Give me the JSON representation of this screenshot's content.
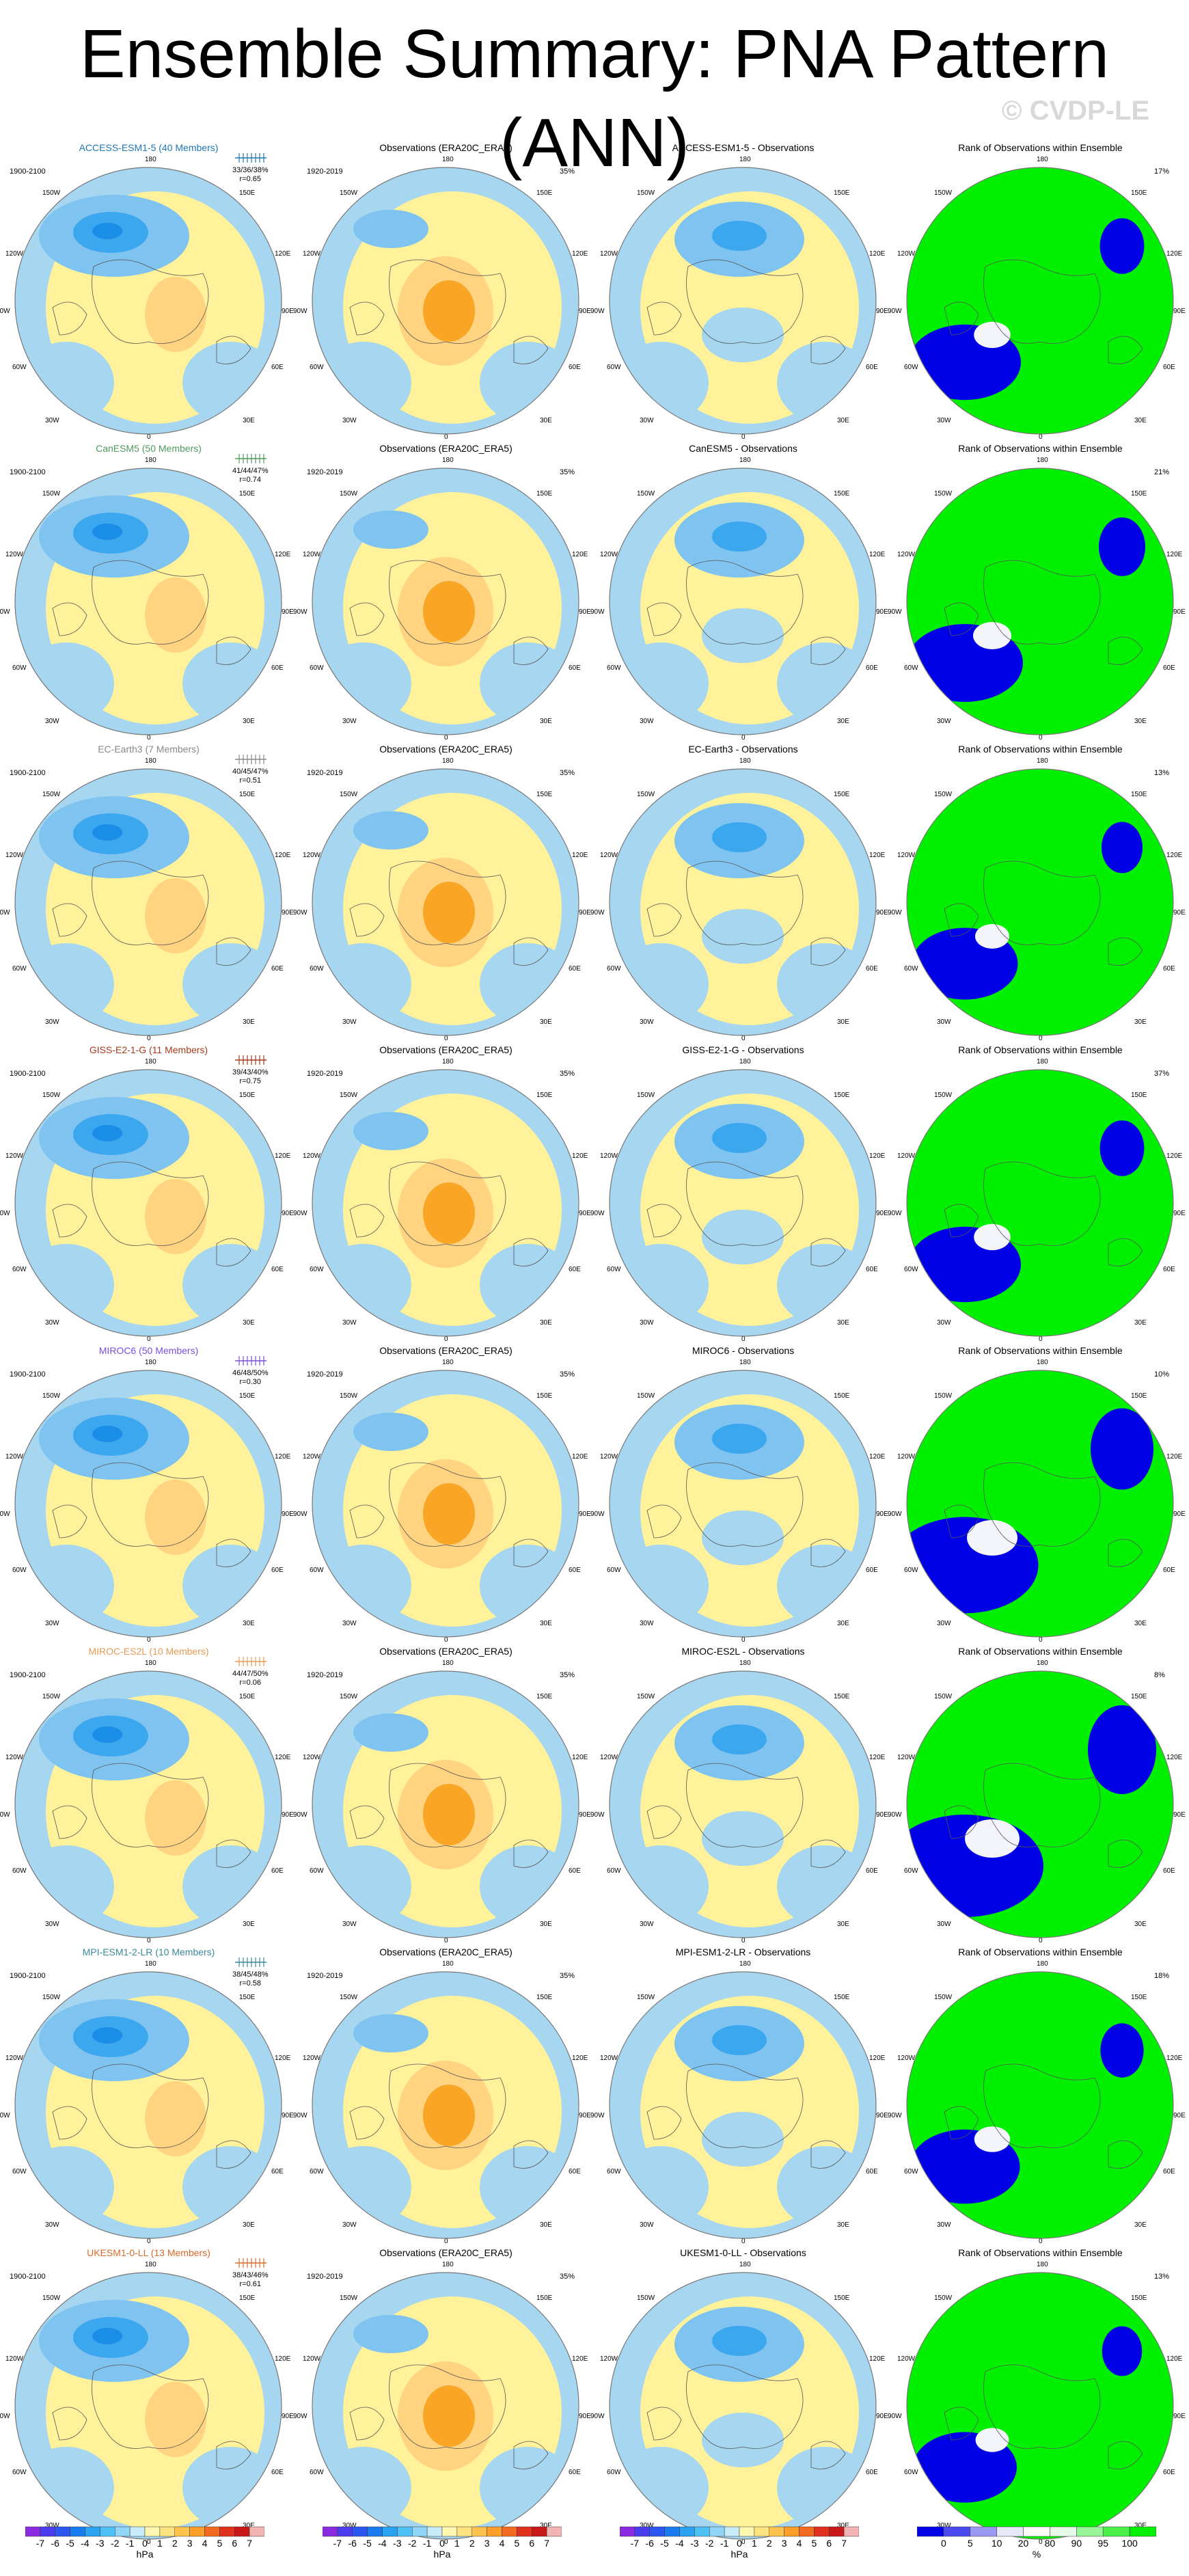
{
  "title": "Ensemble Summary: PNA Pattern (ANN)",
  "watermark": "© CVDP-LE",
  "map_labels": {
    "lon180": "180",
    "lon0": "0",
    "lon150w": "150W",
    "lon120w": "120W",
    "lon90w": "90W",
    "lon60w": "60W",
    "lon30w": "30W",
    "lon150e": "150E",
    "lon120e": "120E",
    "lon90e": "90E",
    "lon60e": "60E",
    "lon30e": "30E"
  },
  "colors": {
    "ocean": "#a6d6f0",
    "land_anom": "#fff29a",
    "pos1": "#ffd37f",
    "pos2": "#f9a627",
    "neg1": "#7fc3f0",
    "neg2": "#3aa7ef",
    "neg3": "#1a8ee6",
    "rank_high": "#00f000",
    "rank_low": "#0000e6",
    "rank_mid": "#f4f4fb"
  },
  "rows": [
    {
      "model": "ACCESS-ESM1-5 (40 Members)",
      "model_color": "#1f77b4",
      "years": "1900-2100",
      "stats": "33/36/38%",
      "r": "r=0.65",
      "obs_title": "Observations (ERA20C_ERA5)",
      "obs_years": "1920-2019",
      "obs_pct": "35%",
      "diff_title": "ACCESS-ESM1-5 - Observations",
      "rank_title": "Rank of Observations within Ensemble",
      "rank_pct": "17%",
      "rank_fraction": 0.72
    },
    {
      "model": "CanESM5 (50 Members)",
      "model_color": "#4f9a5c",
      "years": "1900-2100",
      "stats": "41/44/47%",
      "r": "r=0.74",
      "obs_title": "Observations (ERA20C_ERA5)",
      "obs_years": "1920-2019",
      "obs_pct": "35%",
      "diff_title": "CanESM5 - Observations",
      "rank_title": "Rank of Observations within Ensemble",
      "rank_pct": "21%",
      "rank_fraction": 0.7
    },
    {
      "model": "EC-Earth3 (7 Members)",
      "model_color": "#888888",
      "years": "1900-2100",
      "stats": "40/45/47%",
      "r": "r=0.51",
      "obs_title": "Observations (ERA20C_ERA5)",
      "obs_years": "1920-2019",
      "obs_pct": "35%",
      "diff_title": "EC-Earth3 - Observations",
      "rank_title": "Rank of Observations within Ensemble",
      "rank_pct": "13%",
      "rank_fraction": 0.75
    },
    {
      "model": "GISS-E2-1-G (11 Members)",
      "model_color": "#a83a1b",
      "years": "1900-2100",
      "stats": "39/43/40%",
      "r": "r=0.75",
      "obs_title": "Observations (ERA20C_ERA5)",
      "obs_years": "1920-2019",
      "obs_pct": "35%",
      "diff_title": "GISS-E2-1-G - Observations",
      "rank_title": "Rank of Observations within Ensemble",
      "rank_pct": "37%",
      "rank_fraction": 0.72
    },
    {
      "model": "MIROC6 (50 Members)",
      "model_color": "#7a4fe0",
      "years": "1900-2100",
      "stats": "46/48/50%",
      "r": "r=0.30",
      "obs_title": "Observations (ERA20C_ERA5)",
      "obs_years": "1920-2019",
      "obs_pct": "35%",
      "diff_title": "MIROC6 - Observations",
      "rank_title": "Rank of Observations within Ensemble",
      "rank_pct": "10%",
      "rank_fraction": 0.55
    },
    {
      "model": "MIROC-ES2L (10 Members)",
      "model_color": "#e89a55",
      "years": "1900-2100",
      "stats": "44/47/50%",
      "r": "r=0.06",
      "obs_title": "Observations (ERA20C_ERA5)",
      "obs_years": "1920-2019",
      "obs_pct": "35%",
      "diff_title": "MIROC-ES2L - Observations",
      "rank_title": "Rank of Observations within Ensemble",
      "rank_pct": "8%",
      "rank_fraction": 0.5
    },
    {
      "model": "MPI-ESM1-2-LR (10 Members)",
      "model_color": "#3a8a9a",
      "years": "1900-2100",
      "stats": "38/45/48%",
      "r": "r=0.58",
      "obs_title": "Observations (ERA20C_ERA5)",
      "obs_years": "1920-2019",
      "obs_pct": "35%",
      "diff_title": "MPI-ESM1-2-LR - Observations",
      "rank_title": "Rank of Observations within Ensemble",
      "rank_pct": "18%",
      "rank_fraction": 0.73
    },
    {
      "model": "UKESM1-0-LL (13 Members)",
      "model_color": "#d96a2b",
      "years": "1900-2100",
      "stats": "38/43/46%",
      "r": "r=0.61",
      "obs_title": "Observations (ERA20C_ERA5)",
      "obs_years": "1920-2019",
      "obs_pct": "35%",
      "diff_title": "UKESM1-0-LL - Observations",
      "rank_title": "Rank of Observations within Ensemble",
      "rank_pct": "13%",
      "rank_fraction": 0.76
    }
  ],
  "colorbar_anom": {
    "labels": [
      "-7",
      "-6",
      "-5",
      "-4",
      "-3",
      "-2",
      "-1",
      "0",
      "1",
      "2",
      "3",
      "4",
      "5",
      "6",
      "7"
    ],
    "colors": [
      "#8a2be2",
      "#4b3cf0",
      "#2c55f2",
      "#1a7cf0",
      "#2ba3f5",
      "#4fc1f7",
      "#8fd6f9",
      "#c8ebfa",
      "#fff7b0",
      "#ffe380",
      "#ffc34d",
      "#ff9f2a",
      "#f46a20",
      "#e0301e",
      "#c81818",
      "#f4b4b4"
    ],
    "unit": "hPa"
  },
  "colorbar_rank": {
    "labels": [
      "0",
      "5",
      "10",
      "20",
      "80",
      "90",
      "95",
      "100"
    ],
    "colors": [
      "#0000e6",
      "#4a4af0",
      "#9a9af5",
      "#e8e8fb",
      "#ffffff",
      "#e8fbe8",
      "#9af59a",
      "#4af04a",
      "#00f000"
    ],
    "unit": "%"
  }
}
